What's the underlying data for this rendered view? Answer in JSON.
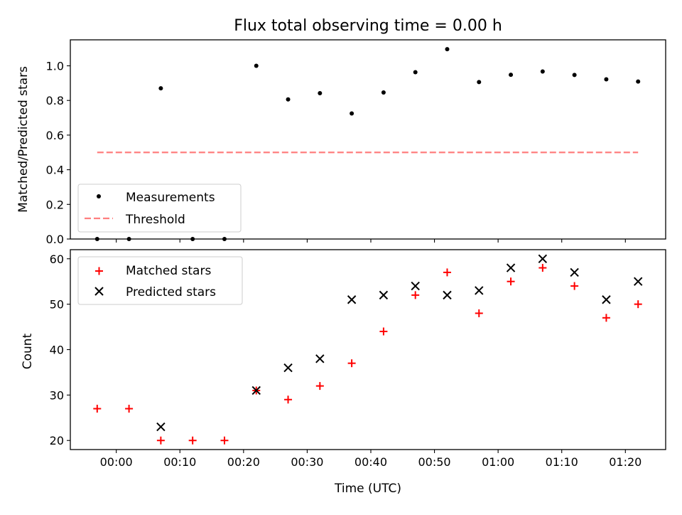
{
  "chart_data": [
    {
      "type": "scatter",
      "title": "Flux total observing time = 0.00 h",
      "ylabel": "Matched/Predicted stars",
      "xlabel": "",
      "ylim": [
        0,
        1.15
      ],
      "yticks": [
        "0.0",
        "0.2",
        "0.4",
        "0.6",
        "0.8",
        "1.0"
      ],
      "yticks_values": [
        0,
        0.2,
        0.4,
        0.6,
        0.8,
        1.0
      ],
      "legend_position": "lower-left",
      "series": [
        {
          "name": "Measurements",
          "color": "#000000",
          "x": [
            "23:57",
            "00:02",
            "00:07",
            "00:12",
            "00:17",
            "00:22",
            "00:27",
            "00:32",
            "00:37",
            "00:42",
            "00:47",
            "00:52",
            "00:57",
            "01:02",
            "01:07",
            "01:12",
            "01:17",
            "01:22"
          ],
          "y": [
            0,
            0,
            0.87,
            0,
            0,
            1.0,
            0.806,
            0.842,
            0.725,
            0.846,
            0.963,
            1.096,
            0.906,
            0.948,
            0.967,
            0.947,
            0.922,
            0.909
          ]
        },
        {
          "name": "Threshold",
          "color": "#ff7f7f",
          "style": "dashed",
          "x": [
            "23:57",
            "01:22"
          ],
          "y": [
            0.5,
            0.5
          ]
        }
      ]
    },
    {
      "type": "scatter",
      "title": "",
      "ylabel": "Count",
      "xlabel": "Time (UTC)",
      "ylim": [
        18,
        62
      ],
      "yticks": [
        "20",
        "30",
        "40",
        "50",
        "60"
      ],
      "yticks_values": [
        20,
        30,
        40,
        50,
        60
      ],
      "xticks": [
        "00:00",
        "00:10",
        "00:20",
        "00:30",
        "00:40",
        "00:50",
        "01:00",
        "01:10",
        "01:20"
      ],
      "legend_position": "upper-left",
      "series": [
        {
          "name": "Matched stars",
          "color": "#ff0000",
          "marker": "plus",
          "x": [
            "23:57",
            "00:02",
            "00:07",
            "00:12",
            "00:17",
            "00:22",
            "00:27",
            "00:32",
            "00:37",
            "00:42",
            "00:47",
            "00:52",
            "00:57",
            "01:02",
            "01:07",
            "01:12",
            "01:17",
            "01:22"
          ],
          "y": [
            27,
            27,
            20,
            20,
            20,
            31,
            29,
            32,
            37,
            44,
            52,
            57,
            48,
            55,
            58,
            54,
            47,
            50
          ]
        },
        {
          "name": "Predicted stars",
          "color": "#000000",
          "marker": "x",
          "x": [
            "00:07",
            "00:22",
            "00:27",
            "00:32",
            "00:37",
            "00:42",
            "00:47",
            "00:52",
            "00:57",
            "01:02",
            "01:07",
            "01:12",
            "01:17",
            "01:22"
          ],
          "y": [
            23,
            31,
            36,
            38,
            51,
            52,
            54,
            52,
            53,
            58,
            60,
            57,
            51,
            55
          ]
        }
      ]
    }
  ]
}
